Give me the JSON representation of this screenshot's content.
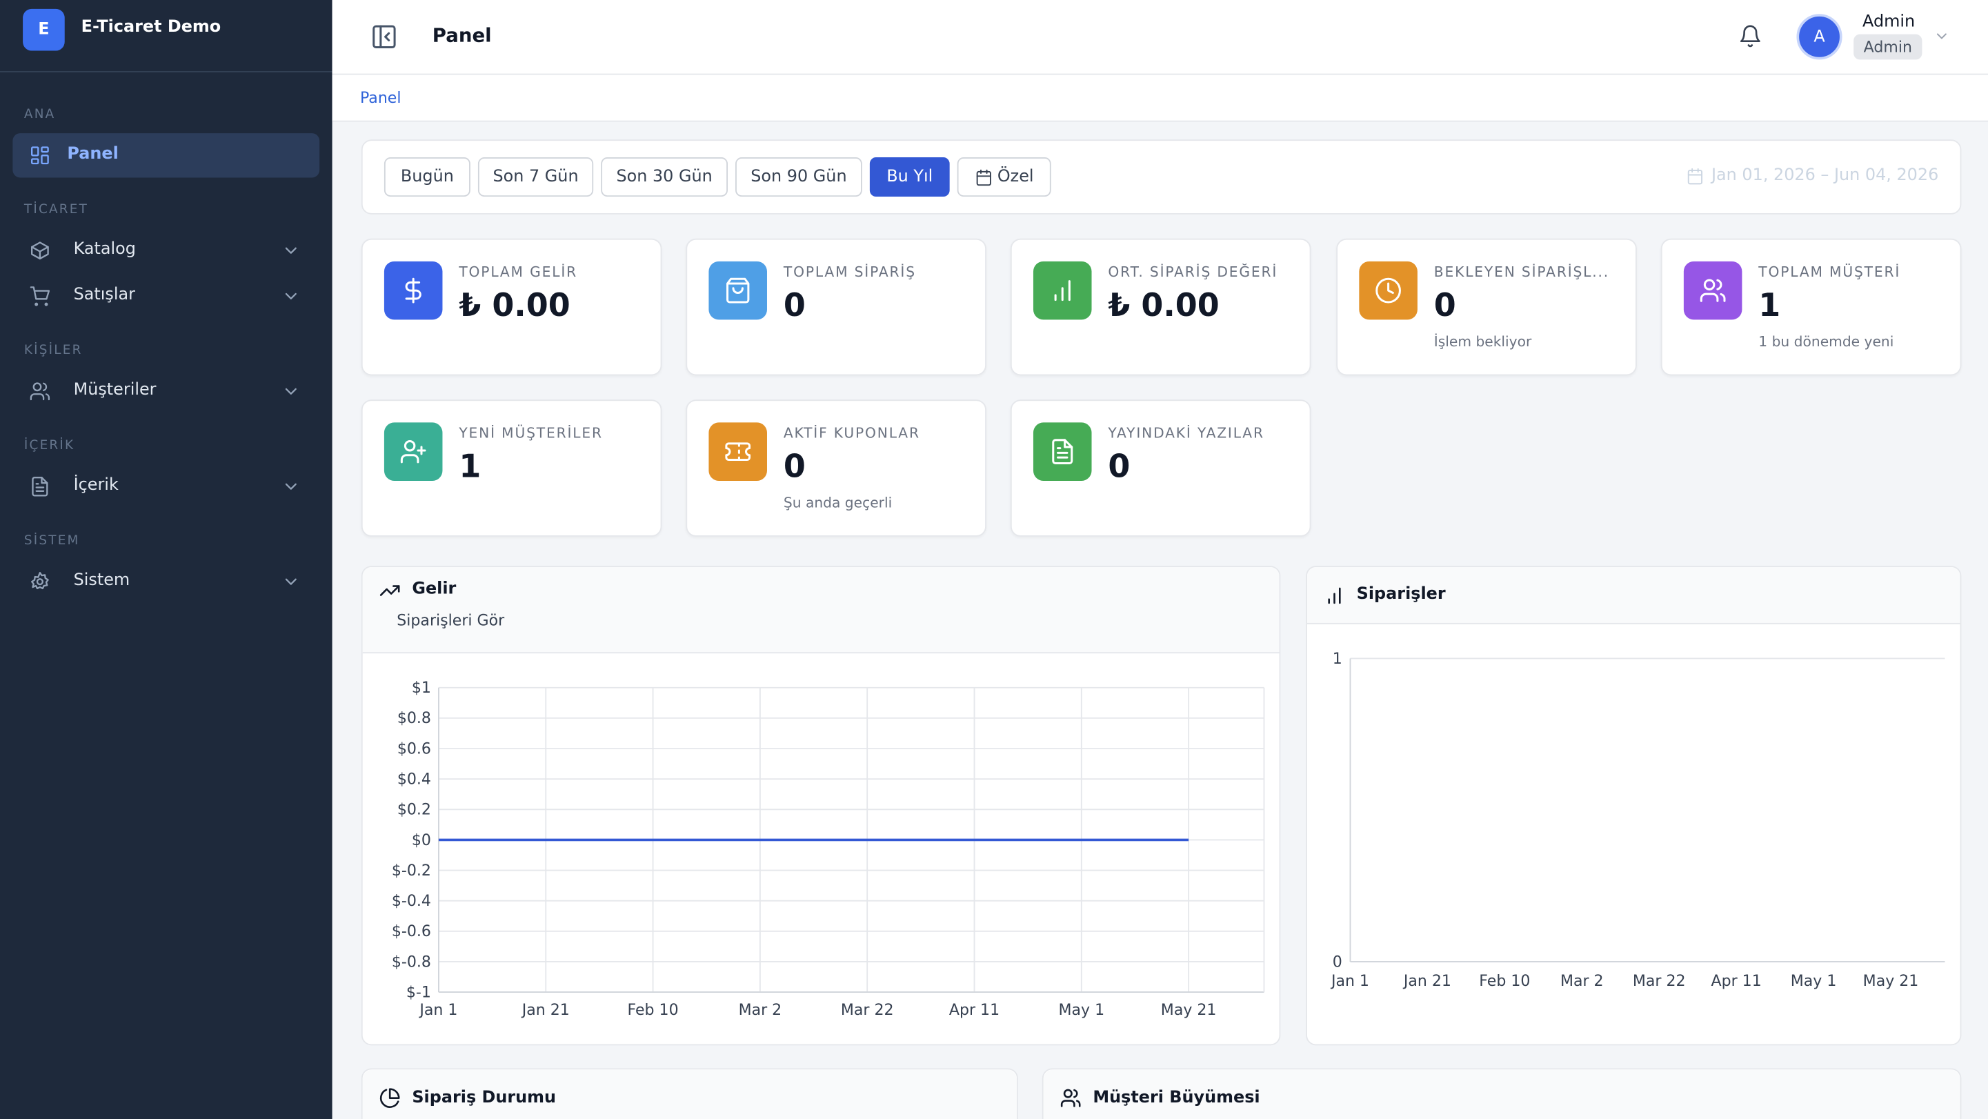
{
  "sidebar": {
    "logo": "E",
    "brand": "E-Ticaret Demo",
    "sections": [
      {
        "title": "ANA",
        "items": [
          "Panel"
        ]
      },
      {
        "title": "TİCARET",
        "items": [
          "Katalog",
          "Satışlar"
        ]
      },
      {
        "title": "KİŞİLER",
        "items": [
          "Müşteriler"
        ]
      },
      {
        "title": "İÇERİK",
        "items": [
          "İçerik"
        ]
      },
      {
        "title": "SİSTEM",
        "items": [
          "Sistem"
        ]
      }
    ]
  },
  "header": {
    "title": "Panel",
    "avatar": "A",
    "user": "Admin",
    "role": "Admin"
  },
  "breadcrumb": "Panel",
  "filters": {
    "buttons": [
      "Bugün",
      "Son 7 Gün",
      "Son 30 Gün",
      "Son 90 Gün",
      "Bu Yıl",
      "Özel"
    ],
    "active": 4,
    "range": "Jan 01, 2026 – Jun 04, 2026"
  },
  "stats": [
    {
      "label": "TOPLAM GELİR",
      "value": "₺ 0.00",
      "color": "#3b63e8"
    },
    {
      "label": "TOPLAM SİPARİŞ",
      "value": 0,
      "color": "#4f9fe6"
    },
    {
      "label": "ORT. SİPARİŞ DEĞERİ",
      "value": "₺ 0.00",
      "color": "#46ab55"
    },
    {
      "label": "BEKLEYEN SİPARİŞL...",
      "value": 0,
      "sub": "İşlem bekliyor",
      "color": "#e39228"
    },
    {
      "label": "TOPLAM MÜŞTERİ",
      "value": 1,
      "sub": "1 bu dönemde yeni",
      "color": "#9656e6"
    },
    {
      "label": "YENİ MÜŞTERİLER",
      "value": 1,
      "color": "#3aaf95"
    },
    {
      "label": "AKTİF KUPONLAR",
      "value": 0,
      "sub": "Şu anda geçerli",
      "color": "#e39228"
    },
    {
      "label": "YAYINDAKİ YAZILAR",
      "value": 0,
      "color": "#46ab55"
    }
  ],
  "charts": [
    {
      "type": "line",
      "title": "Gelir",
      "subtitle": "Siparişleri Gör",
      "categories": [
        "Jan 1",
        "Jan 21",
        "Feb 10",
        "Mar 2",
        "Mar 22",
        "Apr 11",
        "May 1",
        "May 21"
      ],
      "values": [
        0,
        0,
        0,
        0,
        0,
        0,
        0,
        0
      ],
      "color": "#3358d4",
      "grid": true,
      "ylim": [
        -1,
        1
      ],
      "yticks": [
        {
          "value": 1,
          "label": "$1"
        },
        {
          "value": 0.8,
          "label": "$0.8"
        },
        {
          "value": 0.6,
          "label": "$0.6"
        },
        {
          "value": 0.4,
          "label": "$0.4"
        },
        {
          "value": 0.2,
          "label": "$0.2"
        },
        {
          "value": 0,
          "label": "$0"
        },
        {
          "value": -0.2,
          "label": "$-0.2"
        },
        {
          "value": -0.4,
          "label": "$-0.4"
        },
        {
          "value": -0.6,
          "label": "$-0.6"
        },
        {
          "value": -0.8,
          "label": "$-0.8"
        },
        {
          "value": -1,
          "label": "$-1"
        }
      ]
    },
    {
      "type": "bar",
      "title": "Siparişler",
      "categories": [
        "Jan 1",
        "Jan 21",
        "Feb 10",
        "Mar 2",
        "Mar 22",
        "Apr 11",
        "May 1",
        "May 21"
      ],
      "values": [
        0,
        0,
        0,
        0,
        0,
        0,
        0,
        0
      ],
      "color": "#3358d4",
      "grid": true,
      "ylim": [
        0,
        1
      ],
      "yticks": [
        0,
        1
      ]
    }
  ],
  "bottom_cards": [
    "Sipariş Durumu",
    "Müşteri Büyümesi"
  ]
}
